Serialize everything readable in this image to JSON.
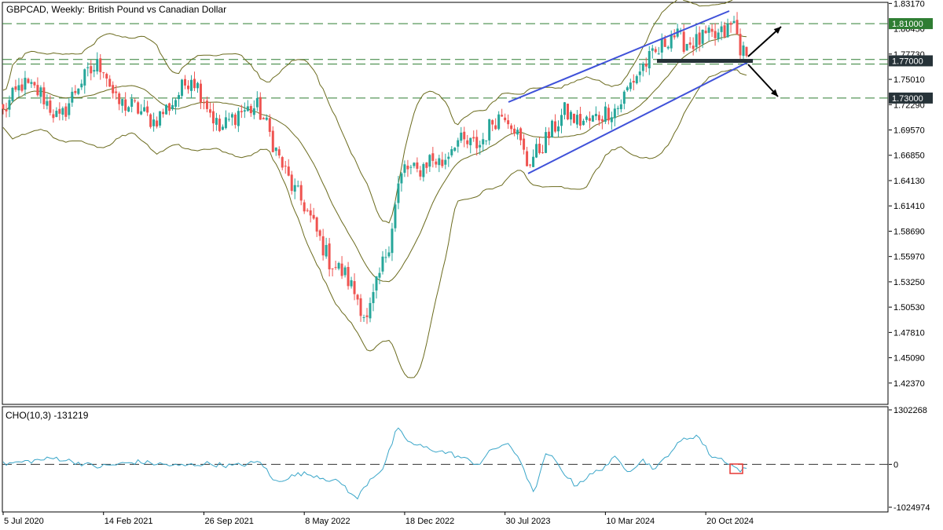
{
  "header": {
    "symbol": "GBPCAD, Weekly:",
    "description": "British Pound vs Canadian Dollar"
  },
  "indicator": {
    "label": "CHO(10,3) -131219"
  },
  "colors": {
    "bull": "#26a69a",
    "bear": "#ef5350",
    "bands": "#6b6b1e",
    "channel": "#3f51d9",
    "level_line": "#2e7d32",
    "cho_line": "#3aa6c9",
    "highlight_box": "#e53935",
    "tag_green": "#2e7d32",
    "tag_dark": "#263238"
  },
  "chart_data": [
    {
      "type": "candlestick",
      "title": "GBPCAD, Weekly:  British Pound vs Canadian Dollar",
      "y_ticks": [
        "1.83170",
        "1.80450",
        "1.77730",
        "1.75010",
        "1.72290",
        "1.69570",
        "1.66850",
        "1.64130",
        "1.61410",
        "1.58690",
        "1.55970",
        "1.53250",
        "1.50530",
        "1.47810",
        "1.45090",
        "1.42370"
      ],
      "ylim": [
        1.405,
        1.832
      ],
      "x_ticks": [
        "5 Jul 2020",
        "14 Feb 2021",
        "26 Sep 2021",
        "8 May 2022",
        "18 Dec 2022",
        "30 Jul 2023",
        "10 Mar 2024",
        "20 Oct 2024"
      ],
      "price_tags": [
        {
          "label": "1.81000",
          "value": 1.81,
          "style": "green"
        },
        {
          "label": "1.77000",
          "value": 1.77,
          "style": "dark"
        },
        {
          "label": "1.73000",
          "value": 1.73,
          "style": "dark"
        }
      ],
      "horizontal_levels": [
        1.81,
        1.7715,
        1.7665,
        1.73
      ],
      "price_path": [
        [
          "2020-07-05",
          1.715
        ],
        [
          "2020-08-16",
          1.745
        ],
        [
          "2020-09-27",
          1.735
        ],
        [
          "2020-11-08",
          1.705
        ],
        [
          "2020-12-20",
          1.745
        ],
        [
          "2021-01-31",
          1.765
        ],
        [
          "2021-02-14",
          1.765
        ],
        [
          "2021-03-14",
          1.725
        ],
        [
          "2021-04-25",
          1.72
        ],
        [
          "2021-06-06",
          1.705
        ],
        [
          "2021-07-18",
          1.725
        ],
        [
          "2021-08-29",
          1.755
        ],
        [
          "2021-09-26",
          1.73
        ],
        [
          "2021-10-31",
          1.695
        ],
        [
          "2021-12-12",
          1.715
        ],
        [
          "2022-01-23",
          1.72
        ],
        [
          "2022-02-13",
          1.7
        ],
        [
          "2022-03-13",
          1.665
        ],
        [
          "2022-04-10",
          1.635
        ],
        [
          "2022-05-08",
          1.615
        ],
        [
          "2022-06-05",
          1.585
        ],
        [
          "2022-07-03",
          1.555
        ],
        [
          "2022-08-07",
          1.54
        ],
        [
          "2022-09-04",
          1.515
        ],
        [
          "2022-09-25",
          1.49
        ],
        [
          "2022-10-23",
          1.54
        ],
        [
          "2022-11-13",
          1.575
        ],
        [
          "2022-12-04",
          1.635
        ],
        [
          "2022-12-18",
          1.655
        ],
        [
          "2023-01-15",
          1.65
        ],
        [
          "2023-02-12",
          1.665
        ],
        [
          "2023-03-12",
          1.66
        ],
        [
          "2023-04-09",
          1.685
        ],
        [
          "2023-05-07",
          1.68
        ],
        [
          "2023-06-04",
          1.68
        ],
        [
          "2023-07-02",
          1.705
        ],
        [
          "2023-07-30",
          1.715
        ],
        [
          "2023-08-20",
          1.7
        ],
        [
          "2023-09-17",
          1.66
        ],
        [
          "2023-10-15",
          1.675
        ],
        [
          "2023-11-12",
          1.695
        ],
        [
          "2023-12-10",
          1.715
        ],
        [
          "2024-01-07",
          1.705
        ],
        [
          "2024-02-04",
          1.705
        ],
        [
          "2024-03-10",
          1.715
        ],
        [
          "2024-04-07",
          1.72
        ],
        [
          "2024-05-05",
          1.745
        ],
        [
          "2024-06-02",
          1.765
        ],
        [
          "2024-07-07",
          1.78
        ],
        [
          "2024-08-04",
          1.8
        ],
        [
          "2024-09-01",
          1.79
        ],
        [
          "2024-09-29",
          1.79
        ],
        [
          "2024-10-20",
          1.795
        ],
        [
          "2024-11-10",
          1.795
        ],
        [
          "2024-12-01",
          1.8
        ],
        [
          "2024-12-22",
          1.81
        ],
        [
          "2025-01-05",
          1.785
        ],
        [
          "2025-01-19",
          1.77
        ]
      ],
      "annotations": [
        "ascending channel (blue)",
        "Bollinger-style bands (olive)",
        "support/resistance zone at 1.77000",
        "arrows: breakout up toward 1.81000 / breakdown toward 1.73000"
      ]
    },
    {
      "type": "line",
      "title": "CHO(10,3) -131219",
      "y_ticks": [
        "1302268",
        "0",
        "-1024974"
      ],
      "ylim": [
        -1024974,
        1302268
      ],
      "zero_line": true,
      "series": [
        {
          "values": [
            [
              2020,
              7,
              0
            ],
            [
              2020,
              11,
              150000
            ],
            [
              2021,
              2,
              -60000
            ],
            [
              2021,
              5,
              60000
            ],
            [
              2021,
              8,
              -40000
            ],
            [
              2021,
              10,
              20000
            ],
            [
              2021,
              12,
              -40000
            ],
            [
              2022,
              2,
              60000
            ],
            [
              2022,
              3,
              -420000
            ],
            [
              2022,
              5,
              -220000
            ],
            [
              2022,
              6,
              -260000
            ],
            [
              2022,
              8,
              -460000
            ],
            [
              2022,
              9,
              -850000
            ],
            [
              2022,
              10,
              -360000
            ],
            [
              2022,
              11,
              -80000
            ],
            [
              2022,
              12,
              850000
            ],
            [
              2023,
              1,
              500000
            ],
            [
              2023,
              2,
              400000
            ],
            [
              2023,
              4,
              250000
            ],
            [
              2023,
              6,
              0
            ],
            [
              2023,
              7,
              350000
            ],
            [
              2023,
              8,
              500000
            ],
            [
              2023,
              9,
              150000
            ],
            [
              2023,
              10,
              -700000
            ],
            [
              2023,
              11,
              300000
            ],
            [
              2024,
              1,
              -500000
            ],
            [
              2024,
              3,
              -100000
            ],
            [
              2024,
              4,
              150000
            ],
            [
              2024,
              5,
              -150000
            ],
            [
              2024,
              6,
              100000
            ],
            [
              2024,
              7,
              -120000
            ],
            [
              2024,
              8,
              300000
            ],
            [
              2024,
              9,
              600000
            ],
            [
              2024,
              10,
              700000
            ],
            [
              2024,
              11,
              200000
            ],
            [
              2024,
              12,
              100000
            ],
            [
              2025,
              1,
              -131219
            ]
          ]
        }
      ]
    }
  ]
}
